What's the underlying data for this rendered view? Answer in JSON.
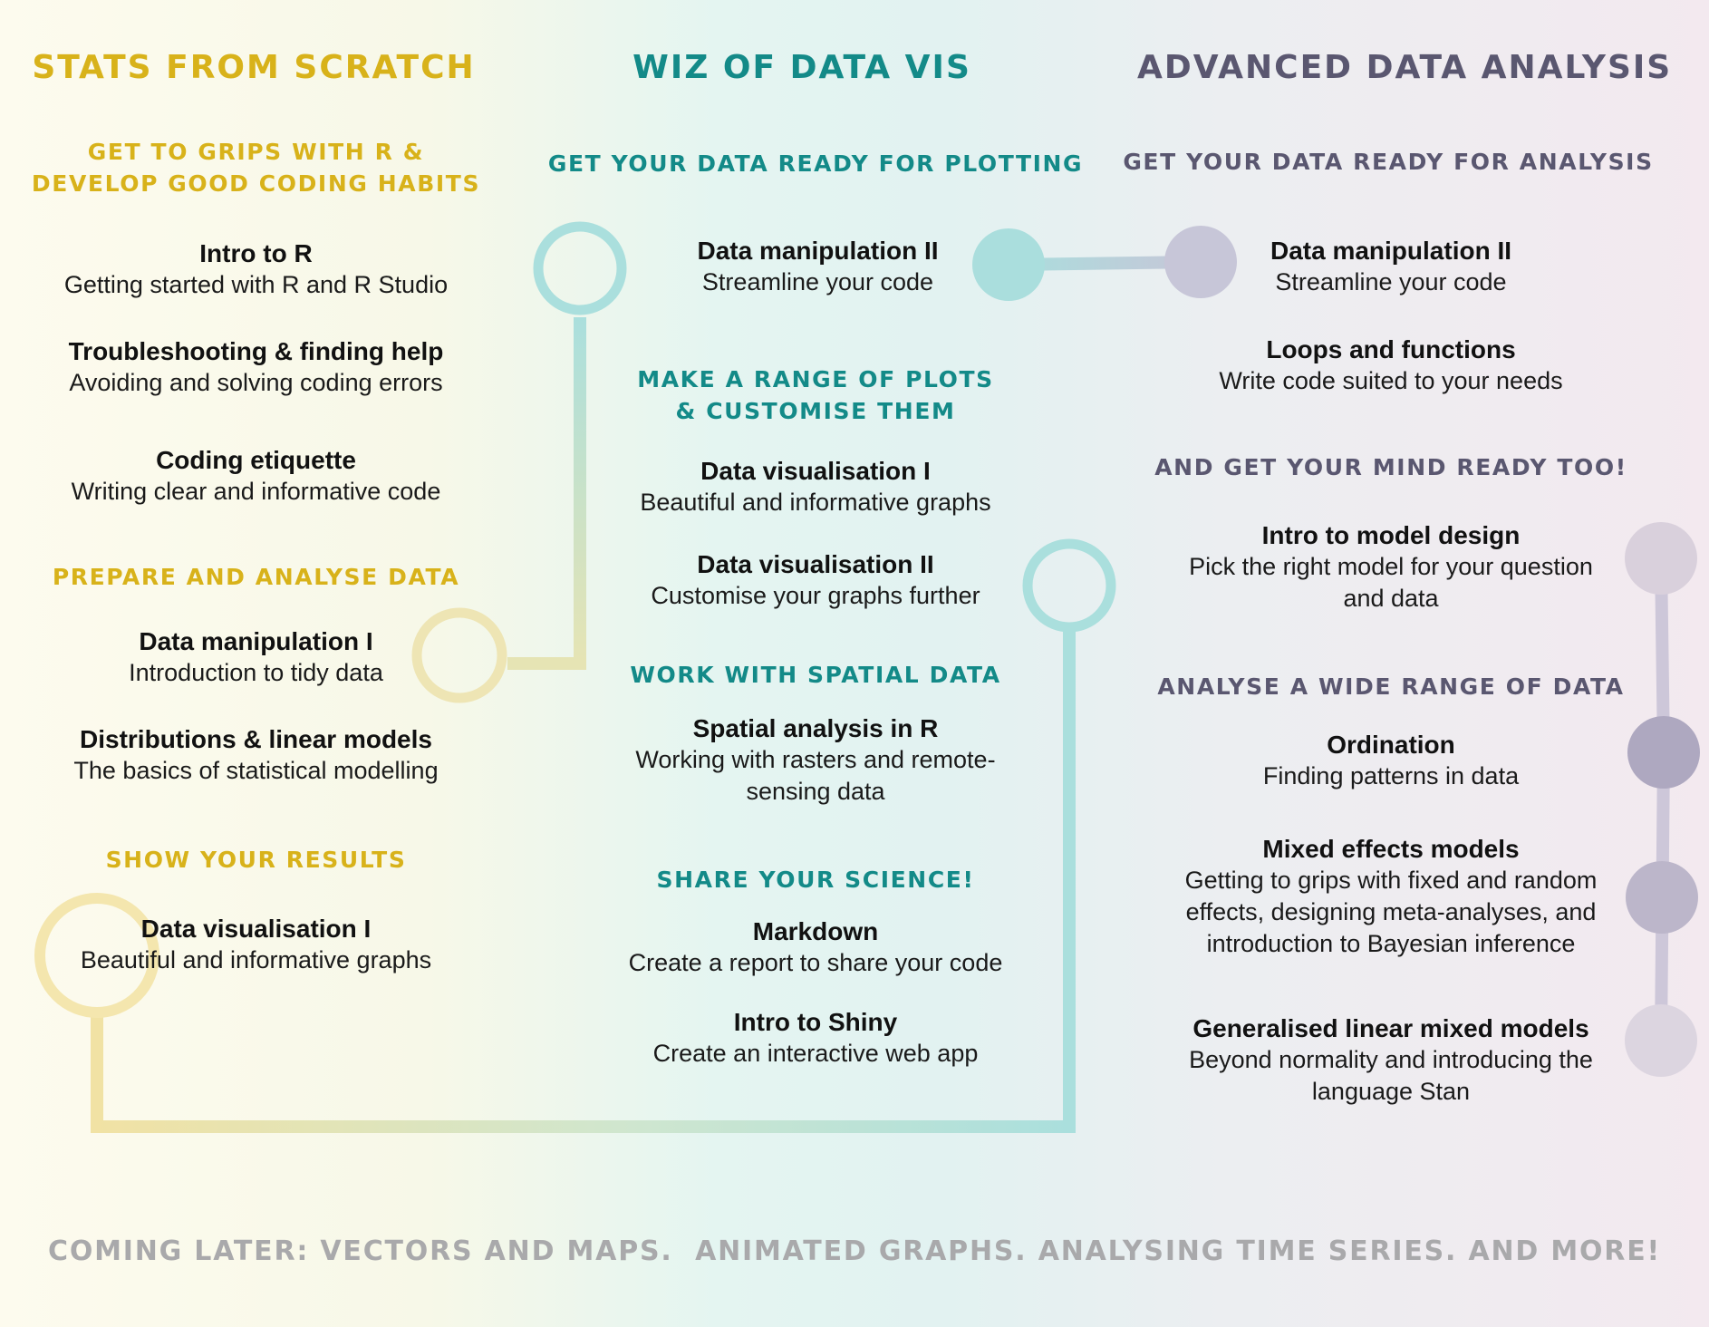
{
  "tracks": [
    {
      "title": "STATS FROM SCRATCH",
      "color": "#d8b21a",
      "sections": [
        {
          "heading": "GET TO GRIPS WITH R &\nDEVELOP GOOD CODING HABITS",
          "courses": [
            {
              "title": "Intro to R",
              "subtitle": "Getting started with R and R Studio"
            },
            {
              "title": "Troubleshooting & finding help",
              "subtitle": "Avoiding and solving coding errors"
            },
            {
              "title": "Coding etiquette",
              "subtitle": "Writing clear and informative code"
            }
          ]
        },
        {
          "heading": "PREPARE AND ANALYSE DATA",
          "courses": [
            {
              "title": "Data manipulation I",
              "subtitle": "Introduction to tidy data"
            },
            {
              "title": "Distributions & linear models",
              "subtitle": "The basics of statistical modelling"
            }
          ]
        },
        {
          "heading": "SHOW YOUR RESULTS",
          "courses": [
            {
              "title": "Data visualisation I",
              "subtitle": "Beautiful and informative graphs"
            }
          ]
        }
      ]
    },
    {
      "title": "WIZ OF DATA VIS",
      "color": "#138a88",
      "sections": [
        {
          "heading": "GET YOUR DATA READY FOR PLOTTING",
          "courses": [
            {
              "title": "Data manipulation II",
              "subtitle": "Streamline your code"
            }
          ]
        },
        {
          "heading": "MAKE A RANGE OF PLOTS\n& CUSTOMISE THEM",
          "courses": [
            {
              "title": "Data visualisation I",
              "subtitle": "Beautiful and informative graphs"
            },
            {
              "title": "Data visualisation II",
              "subtitle": "Customise your graphs further"
            }
          ]
        },
        {
          "heading": "WORK WITH SPATIAL DATA",
          "courses": [
            {
              "title": "Spatial analysis in R",
              "subtitle": "Working with rasters and remote-\nsensing data"
            }
          ]
        },
        {
          "heading": "SHARE YOUR SCIENCE!",
          "courses": [
            {
              "title": "Markdown",
              "subtitle": "Create a report to share your code"
            },
            {
              "title": "Intro to Shiny",
              "subtitle": "Create an interactive web app"
            }
          ]
        }
      ]
    },
    {
      "title": "ADVANCED DATA ANALYSIS",
      "color": "#5a5770",
      "sections": [
        {
          "heading": "GET YOUR DATA READY FOR ANALYSIS",
          "courses": [
            {
              "title": "Data manipulation II",
              "subtitle": "Streamline your code"
            },
            {
              "title": "Loops and functions",
              "subtitle": "Write code suited to your needs"
            }
          ]
        },
        {
          "heading": "AND GET YOUR MIND READY TOO!",
          "courses": [
            {
              "title": "Intro to model design",
              "subtitle": "Pick the right model for your question\nand data"
            }
          ]
        },
        {
          "heading": "ANALYSE A WIDE RANGE OF DATA",
          "courses": [
            {
              "title": "Ordination",
              "subtitle": "Finding patterns in data"
            },
            {
              "title": "Mixed effects models",
              "subtitle": "Getting to grips with fixed and random\neffects, designing meta-analyses, and\nintroduction to Bayesian inference"
            },
            {
              "title": "Generalised linear mixed models",
              "subtitle": "Beyond normality and introducing the\nlanguage Stan"
            }
          ]
        }
      ]
    }
  ],
  "footer": "COMING LATER: VECTORS AND MAPS.  ANIMATED GRAPHS. ANALYSING TIME SERIES. AND MORE!",
  "colors": {
    "gold_connector": "#f1e2a4",
    "teal_connector": "#aadfdd",
    "slate_connector": "#c9c4d6",
    "teal_dot": "#aadedd",
    "slate_dot_light": "#d9d0dc",
    "slate_dot_mid": "#bcb6ca",
    "slate_dot_dark": "#aea8c0"
  }
}
